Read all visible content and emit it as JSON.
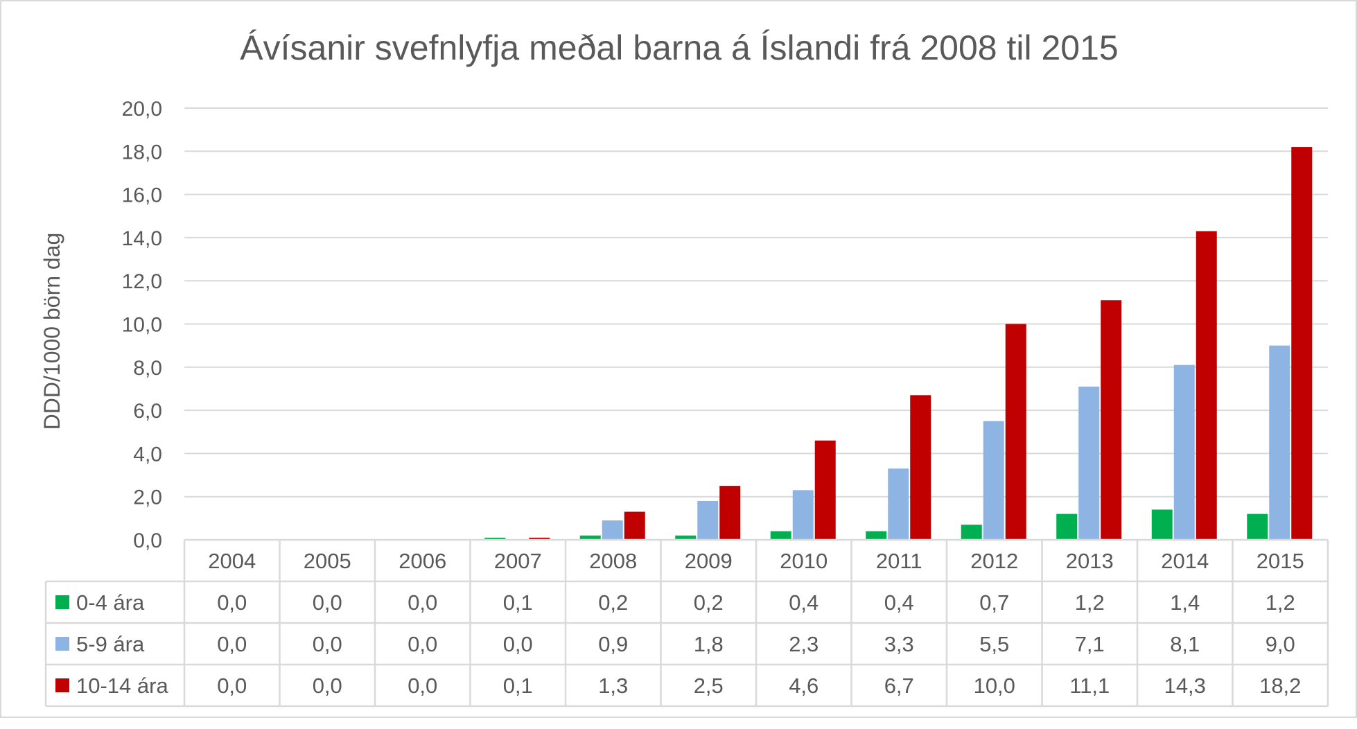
{
  "chart_data": {
    "type": "bar",
    "title": "Ávísanir svefnlyfja meðal barna á Íslandi frá 2008 til 2015",
    "ylabel": "DDD/1000 börn dag",
    "xlabel": "",
    "ylim": [
      0,
      20
    ],
    "ytick_labels": [
      "0,0",
      "2,0",
      "4,0",
      "6,0",
      "8,0",
      "10,0",
      "12,0",
      "14,0",
      "16,0",
      "18,0",
      "20,0"
    ],
    "categories": [
      "2004",
      "2005",
      "2006",
      "2007",
      "2008",
      "2009",
      "2010",
      "2011",
      "2012",
      "2013",
      "2014",
      "2015"
    ],
    "grid": true,
    "legend": "data-table",
    "series": [
      {
        "name": "0-4 ára",
        "color": "#00b050",
        "values": [
          0.0,
          0.0,
          0.0,
          0.1,
          0.2,
          0.2,
          0.4,
          0.4,
          0.7,
          1.2,
          1.4,
          1.2
        ],
        "labels": [
          "0,0",
          "0,0",
          "0,0",
          "0,1",
          "0,2",
          "0,2",
          "0,4",
          "0,4",
          "0,7",
          "1,2",
          "1,4",
          "1,2"
        ]
      },
      {
        "name": "5-9 ára",
        "color": "#8eb4e3",
        "values": [
          0.0,
          0.0,
          0.0,
          0.0,
          0.9,
          1.8,
          2.3,
          3.3,
          5.5,
          7.1,
          8.1,
          9.0
        ],
        "labels": [
          "0,0",
          "0,0",
          "0,0",
          "0,0",
          "0,9",
          "1,8",
          "2,3",
          "3,3",
          "5,5",
          "7,1",
          "8,1",
          "9,0"
        ]
      },
      {
        "name": "10-14 ára",
        "color": "#c00000",
        "values": [
          0.0,
          0.0,
          0.0,
          0.1,
          1.3,
          2.5,
          4.6,
          6.7,
          10.0,
          11.1,
          14.3,
          18.2
        ],
        "labels": [
          "0,0",
          "0,0",
          "0,0",
          "0,1",
          "1,3",
          "2,5",
          "4,6",
          "6,7",
          "10,0",
          "11,1",
          "14,3",
          "18,2"
        ]
      }
    ]
  }
}
